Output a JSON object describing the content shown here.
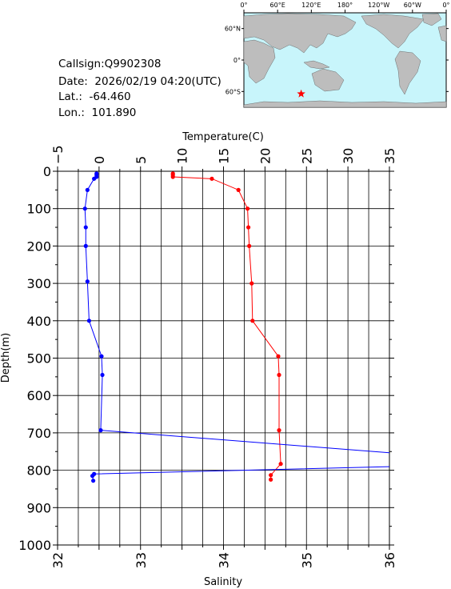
{
  "station": {
    "callsign_label": "Callsign:",
    "callsign": "Q9902308",
    "date_label": "Date:",
    "date": "2026/02/19 04:20(UTC)",
    "lat_label": "Lat.:",
    "lat": "-64.460",
    "lon_label": "Lon.:",
    "lon": "101.890"
  },
  "map": {
    "top_labels": [
      "0°",
      "60°E",
      "120°E",
      "180°",
      "120°W",
      "60°W",
      "0°"
    ],
    "side_labels": [
      "60°N",
      "0°",
      "60°S"
    ],
    "marker": "star",
    "ocean_color": "#c8f5fb",
    "land_color": "#bdbdbd",
    "marker_color": "#ff0000"
  },
  "chart_data": {
    "type": "line",
    "y_axis": {
      "label": "Depth(m)",
      "range": [
        0,
        1000
      ],
      "inverted": true,
      "ticks": [
        "0",
        "100",
        "200",
        "300",
        "400",
        "500",
        "600",
        "700",
        "800",
        "900",
        "1000"
      ]
    },
    "x_axis_top": {
      "label": "Temperature(C)",
      "range": [
        -5,
        35
      ],
      "ticks": [
        "−5",
        "0",
        "5",
        "10",
        "15",
        "20",
        "25",
        "30",
        "35"
      ]
    },
    "x_axis_bottom": {
      "label": "Salinity",
      "range": [
        32,
        36
      ],
      "ticks": [
        "32",
        "33",
        "34",
        "35",
        "36"
      ]
    },
    "grid": true,
    "series": [
      {
        "color": "#ff0000",
        "axis": "bottom",
        "points": [
          [
            33.39,
            6
          ],
          [
            33.39,
            10
          ],
          [
            33.39,
            15
          ],
          [
            33.86,
            20
          ],
          [
            34.18,
            50
          ],
          [
            34.29,
            100
          ],
          [
            34.3,
            150
          ],
          [
            34.31,
            200
          ],
          [
            34.34,
            300
          ],
          [
            34.35,
            400
          ],
          [
            34.66,
            495
          ],
          [
            34.67,
            545
          ],
          [
            34.67,
            693
          ],
          [
            34.69,
            783
          ],
          [
            34.57,
            813
          ],
          [
            34.57,
            825
          ]
        ]
      },
      {
        "color": "#0000ff",
        "axis": "top",
        "points": [
          [
            -0.3,
            6
          ],
          [
            -0.3,
            10
          ],
          [
            -0.3,
            15
          ],
          [
            -0.6,
            20
          ],
          [
            -1.4,
            50
          ],
          [
            -1.7,
            100
          ],
          [
            -1.6,
            150
          ],
          [
            -1.6,
            200
          ],
          [
            -1.4,
            295
          ],
          [
            -1.2,
            400
          ],
          [
            0.3,
            495
          ],
          [
            0.4,
            545
          ],
          [
            0.2,
            693
          ],
          [
            36.0,
            755
          ]
        ]
      },
      {
        "color": "#0000ff",
        "axis": "top",
        "points": [
          [
            36.0,
            790
          ],
          [
            -0.6,
            810
          ],
          [
            -0.8,
            815
          ],
          [
            -0.7,
            828
          ]
        ]
      }
    ]
  }
}
